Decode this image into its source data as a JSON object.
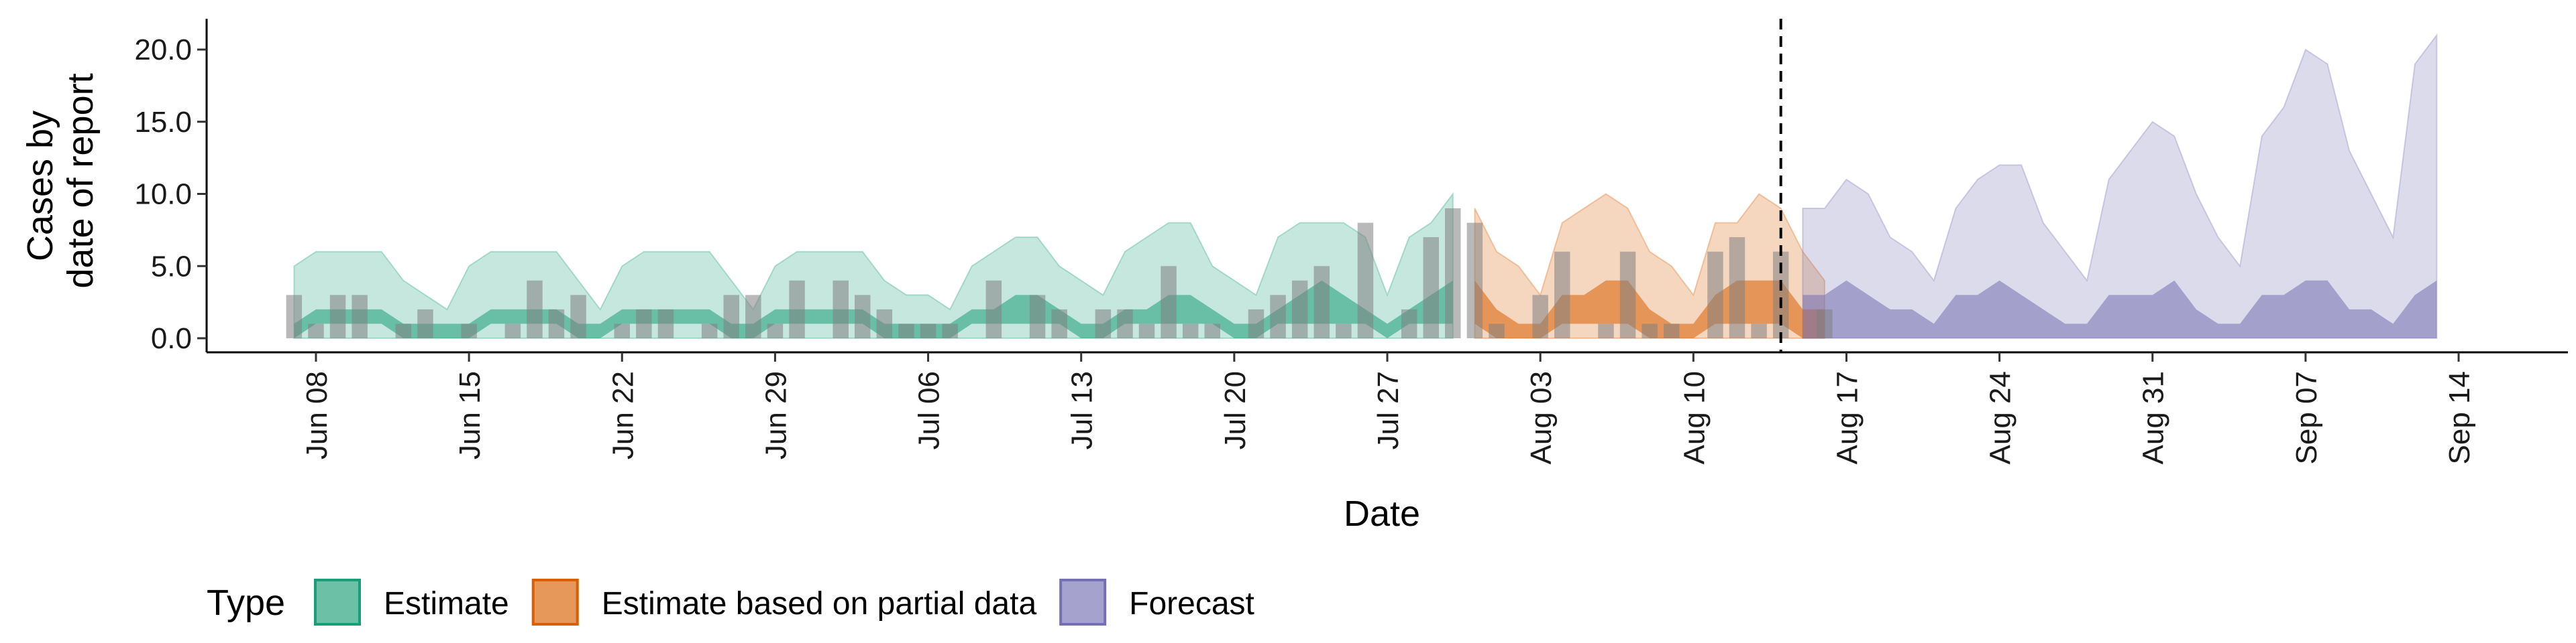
{
  "chart_data": {
    "type": "area",
    "xlabel": "Date",
    "ylabel_lines": [
      "Cases by",
      "date of report"
    ],
    "ylim": [
      0,
      22
    ],
    "y_ticks": [
      0,
      5,
      10,
      15,
      20
    ],
    "y_tick_labels": [
      "0.0",
      "5.0",
      "10.0",
      "15.0",
      "20.0"
    ],
    "x_start": "2020-06-07",
    "x_tick_labels": [
      "Jun 08",
      "Jun 15",
      "Jun 22",
      "Jun 29",
      "Jul 06",
      "Jul 13",
      "Jul 20",
      "Jul 27",
      "Aug 03",
      "Aug 10",
      "Aug 17",
      "Aug 24",
      "Aug 31",
      "Sep 07",
      "Sep 14"
    ],
    "x_tick_days": [
      1,
      8,
      15,
      22,
      29,
      36,
      43,
      50,
      57,
      64,
      71,
      78,
      85,
      92,
      99
    ],
    "x_range_days": [
      -4,
      104
    ],
    "forecast_start_day": 68,
    "grid": false,
    "legend_position": "bottom",
    "legend_title": "Type",
    "series": [
      {
        "name": "Estimate",
        "color": "#1b9e77",
        "start_day": 0,
        "upper_90": [
          5,
          6,
          6,
          6,
          6,
          4,
          3,
          2,
          5,
          6,
          6,
          6,
          6,
          4,
          2,
          5,
          6,
          6,
          6,
          6,
          4,
          2,
          5,
          6,
          6,
          6,
          6,
          4,
          3,
          3,
          2,
          5,
          6,
          7,
          7,
          5,
          4,
          3,
          6,
          7,
          8,
          8,
          5,
          4,
          3,
          7,
          8,
          8,
          8,
          7,
          3,
          7,
          8,
          10
        ],
        "upper_50": [
          1,
          2,
          2,
          2,
          2,
          1,
          1,
          1,
          1,
          2,
          2,
          2,
          2,
          1,
          1,
          2,
          2,
          2,
          2,
          2,
          1,
          1,
          2,
          2,
          2,
          2,
          2,
          1,
          1,
          1,
          1,
          2,
          2,
          3,
          3,
          2,
          1,
          1,
          2,
          2,
          3,
          3,
          2,
          1,
          1,
          2,
          3,
          4,
          3,
          2,
          1,
          2,
          3,
          4
        ],
        "lower_50": [
          0,
          1,
          1,
          1,
          1,
          0,
          0,
          0,
          0,
          1,
          1,
          1,
          1,
          0,
          0,
          1,
          1,
          1,
          1,
          1,
          0,
          0,
          1,
          1,
          1,
          1,
          1,
          0,
          0,
          0,
          0,
          1,
          1,
          1,
          1,
          1,
          0,
          0,
          1,
          1,
          1,
          1,
          1,
          0,
          0,
          1,
          1,
          1,
          1,
          1,
          0,
          1,
          1,
          1
        ],
        "lower_90": [
          0,
          0,
          0,
          0,
          0,
          0,
          0,
          0,
          0,
          0,
          0,
          0,
          0,
          0,
          0,
          0,
          0,
          0,
          0,
          0,
          0,
          0,
          0,
          0,
          0,
          0,
          0,
          0,
          0,
          0,
          0,
          0,
          0,
          0,
          0,
          0,
          0,
          0,
          0,
          0,
          0,
          0,
          0,
          0,
          0,
          0,
          0,
          0,
          0,
          0,
          0,
          0,
          0,
          0
        ]
      },
      {
        "name": "Estimate based on partial data",
        "color": "#d95f02",
        "start_day": 54,
        "upper_90": [
          9,
          6,
          5,
          3,
          8,
          9,
          10,
          9,
          6,
          5,
          3,
          8,
          8,
          10,
          9,
          6,
          4
        ],
        "upper_50": [
          4,
          2,
          1,
          1,
          3,
          3,
          4,
          4,
          2,
          1,
          1,
          3,
          4,
          4,
          4,
          2,
          2
        ],
        "lower_50": [
          1,
          0,
          0,
          0,
          1,
          1,
          1,
          1,
          0,
          0,
          0,
          1,
          1,
          1,
          1,
          0,
          0
        ],
        "lower_90": [
          0,
          0,
          0,
          0,
          0,
          0,
          0,
          0,
          0,
          0,
          0,
          0,
          0,
          0,
          0,
          0,
          0
        ]
      },
      {
        "name": "Forecast",
        "color": "#7570b3",
        "start_day": 69,
        "upper_90": [
          9,
          9,
          11,
          10,
          7,
          6,
          4,
          9,
          11,
          12,
          12,
          8,
          6,
          4,
          11,
          13,
          15,
          14,
          10,
          7,
          5,
          14,
          16,
          20,
          19,
          13,
          10,
          7,
          19,
          21
        ],
        "upper_50": [
          3,
          3,
          4,
          3,
          2,
          2,
          1,
          3,
          3,
          4,
          3,
          2,
          1,
          1,
          3,
          3,
          3,
          4,
          2,
          1,
          1,
          3,
          3,
          4,
          4,
          2,
          2,
          1,
          3,
          4
        ],
        "lower_50": [
          0,
          0,
          0,
          0,
          0,
          0,
          0,
          0,
          0,
          0,
          0,
          0,
          0,
          0,
          0,
          0,
          0,
          0,
          0,
          0,
          0,
          0,
          0,
          0,
          0,
          0,
          0,
          0,
          0,
          0
        ],
        "lower_90": [
          0,
          0,
          0,
          0,
          0,
          0,
          0,
          0,
          0,
          0,
          0,
          0,
          0,
          0,
          0,
          0,
          0,
          0,
          0,
          0,
          0,
          0,
          0,
          0,
          0,
          0,
          0,
          0,
          0,
          0
        ]
      }
    ],
    "observed_bars": {
      "color": "#808080",
      "start_day": 0,
      "values": [
        3,
        1,
        3,
        3,
        0,
        1,
        2,
        0,
        1,
        0,
        1,
        4,
        2,
        3,
        0,
        1,
        2,
        2,
        0,
        1,
        3,
        3,
        1,
        4,
        0,
        4,
        3,
        2,
        1,
        1,
        1,
        0,
        4,
        0,
        3,
        2,
        0,
        2,
        2,
        1,
        5,
        1,
        1,
        0,
        2,
        3,
        4,
        5,
        1,
        8,
        0,
        2,
        7,
        9,
        8,
        1,
        0,
        3,
        6,
        0,
        1,
        6,
        1,
        1,
        0,
        6,
        7,
        1,
        6,
        0,
        2
      ]
    }
  }
}
